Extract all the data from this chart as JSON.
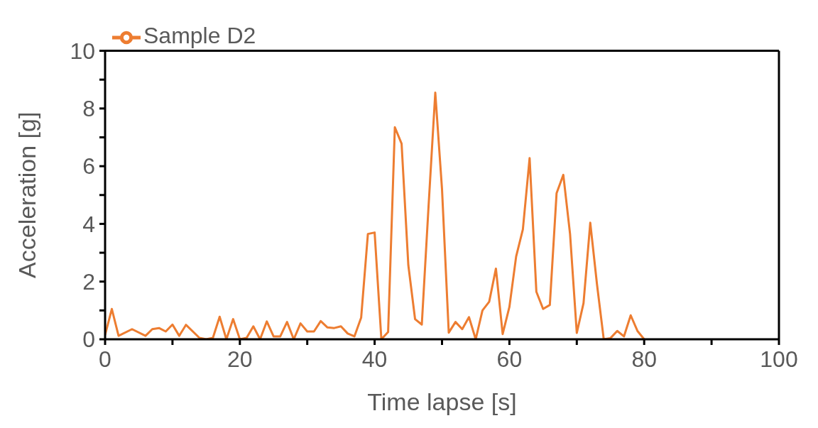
{
  "chart_data": {
    "type": "line",
    "xlabel": "Time lapse [s]",
    "ylabel": "Acceleration [g]",
    "x": [
      0,
      1,
      2,
      4,
      6,
      7,
      8,
      9,
      10,
      11,
      12,
      14,
      15,
      16,
      17,
      18,
      19,
      20,
      21,
      22,
      23,
      24,
      25,
      26,
      27,
      28,
      29,
      30,
      31,
      32,
      33,
      34,
      35,
      36,
      37,
      38,
      39,
      40,
      41,
      42,
      43,
      44,
      45,
      46,
      47,
      48,
      49,
      50,
      51,
      52,
      53,
      54,
      55,
      56,
      57,
      58,
      59,
      60,
      61,
      62,
      63,
      64,
      65,
      66,
      67,
      68,
      69,
      70,
      71,
      72,
      73,
      74,
      75,
      76,
      77,
      78,
      79,
      80
    ],
    "series": [
      {
        "name": "Sample D2",
        "color": "#ed7d31",
        "values": [
          0.15,
          1.05,
          0.12,
          0.35,
          0.12,
          0.35,
          0.39,
          0.27,
          0.51,
          0.12,
          0.5,
          0.05,
          0,
          0.05,
          0.78,
          0,
          0.7,
          0,
          0.05,
          0.45,
          0,
          0.62,
          0.1,
          0.1,
          0.6,
          0,
          0.55,
          0.27,
          0.27,
          0.63,
          0.41,
          0.39,
          0.45,
          0.2,
          0.1,
          0.75,
          3.65,
          3.7,
          0,
          0.25,
          7.35,
          6.78,
          2.57,
          0.7,
          0.51,
          4.6,
          8.55,
          5.2,
          0.23,
          0.6,
          0.35,
          0.77,
          0,
          1.0,
          1.3,
          2.45,
          0.18,
          1.12,
          2.87,
          3.81,
          6.28,
          1.65,
          1.05,
          1.19,
          5.06,
          5.7,
          3.65,
          0.22,
          1.25,
          4.04,
          1.9,
          0,
          0.04,
          0.29,
          0.1,
          0.83,
          0.29,
          0
        ]
      }
    ],
    "xlim": [
      0,
      100
    ],
    "xticks": [
      0,
      {
        "value": 10,
        "label": null
      },
      20,
      {
        "value": 30,
        "label": null
      },
      40,
      {
        "value": 50,
        "label": null
      },
      60,
      {
        "value": 70,
        "label": null
      },
      80,
      {
        "value": 90,
        "label": null
      },
      100
    ],
    "ylim": [
      0,
      10
    ],
    "yticks": [
      0,
      {
        "value": 1,
        "label": null
      },
      2,
      {
        "value": 3,
        "label": null
      },
      4,
      {
        "value": 5,
        "label": null
      },
      6,
      {
        "value": 7,
        "label": null
      },
      8,
      {
        "value": 9,
        "label": null
      },
      10
    ],
    "legend": "top left",
    "marker": "none",
    "line_style": "solid"
  }
}
